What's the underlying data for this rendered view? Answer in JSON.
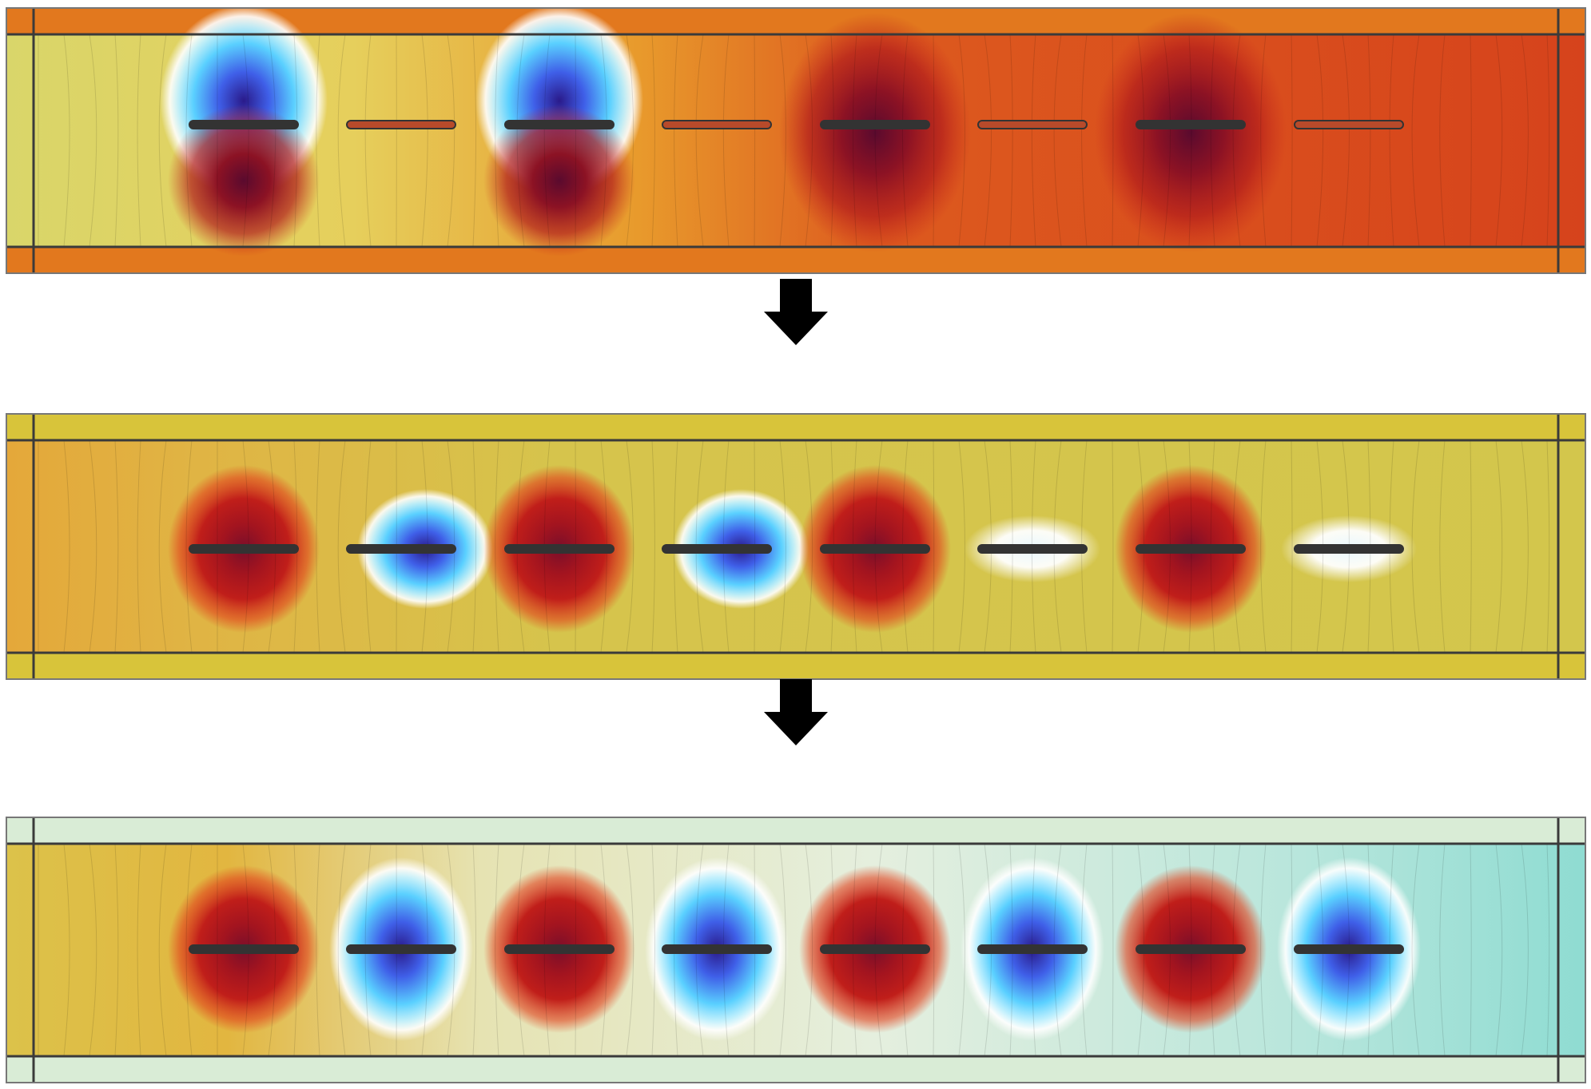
{
  "figure": {
    "panels": [
      {
        "id": "panel-1",
        "background": "#d8441c",
        "ambient": [
          {
            "pos": 0.0,
            "color": "#d9d66a"
          },
          {
            "pos": 0.22,
            "color": "#e6cf5c"
          },
          {
            "pos": 0.4,
            "color": "#e89a2c"
          },
          {
            "pos": 0.55,
            "color": "#dd5a1e"
          },
          {
            "pos": 1.0,
            "color": "#d6431c"
          }
        ],
        "frame_color": "#e2781e",
        "electrodes": [
          {
            "pole": "blue"
          },
          {
            "pole": "neutral"
          },
          {
            "pole": "blue"
          },
          {
            "pole": "neutral"
          },
          {
            "pole": "dark"
          },
          {
            "pole": "neutral"
          },
          {
            "pole": "dark"
          },
          {
            "pole": "neutral"
          }
        ]
      },
      {
        "id": "panel-2",
        "background": "#d2c64a",
        "ambient": [
          {
            "pos": 0.0,
            "color": "#e4a83a"
          },
          {
            "pos": 0.12,
            "color": "#e0b444"
          },
          {
            "pos": 0.35,
            "color": "#d6c44c"
          },
          {
            "pos": 1.0,
            "color": "#d3c64c"
          }
        ],
        "frame_color": "#d8c43a",
        "electrodes": [
          {
            "pole": "red"
          },
          {
            "pole": "blue-small"
          },
          {
            "pole": "red"
          },
          {
            "pole": "blue-small"
          },
          {
            "pole": "red"
          },
          {
            "pole": "white"
          },
          {
            "pole": "red"
          },
          {
            "pole": "white"
          }
        ]
      },
      {
        "id": "panel-3",
        "background": "#cfe8c8",
        "ambient": [
          {
            "pos": 0.0,
            "color": "#dcc24a"
          },
          {
            "pos": 0.14,
            "color": "#e2b640"
          },
          {
            "pos": 0.3,
            "color": "#e6e3b2"
          },
          {
            "pos": 0.55,
            "color": "#e5efde"
          },
          {
            "pos": 0.82,
            "color": "#b8e6dc"
          },
          {
            "pos": 1.0,
            "color": "#8fdcd2"
          }
        ],
        "frame_color": "#d9ecd6",
        "electrodes": [
          {
            "pole": "red"
          },
          {
            "pole": "blue"
          },
          {
            "pole": "red"
          },
          {
            "pole": "blue"
          },
          {
            "pole": "red"
          },
          {
            "pole": "blue"
          },
          {
            "pole": "red"
          },
          {
            "pole": "blue"
          }
        ]
      }
    ],
    "arrows": [
      {
        "from": "panel-1",
        "to": "panel-2",
        "color": "#000000"
      },
      {
        "from": "panel-2",
        "to": "panel-3",
        "color": "#000000"
      }
    ],
    "colors": {
      "red": "#c01e1a",
      "dark_red": "#7a0e2a",
      "blue": "#3f5fe8",
      "dark_blue": "#2a1a8a",
      "cyan": "#5ad0ff",
      "white_halo": "#ffffff",
      "electrode": "#333333",
      "frame_line": "#3a3a3a"
    }
  }
}
